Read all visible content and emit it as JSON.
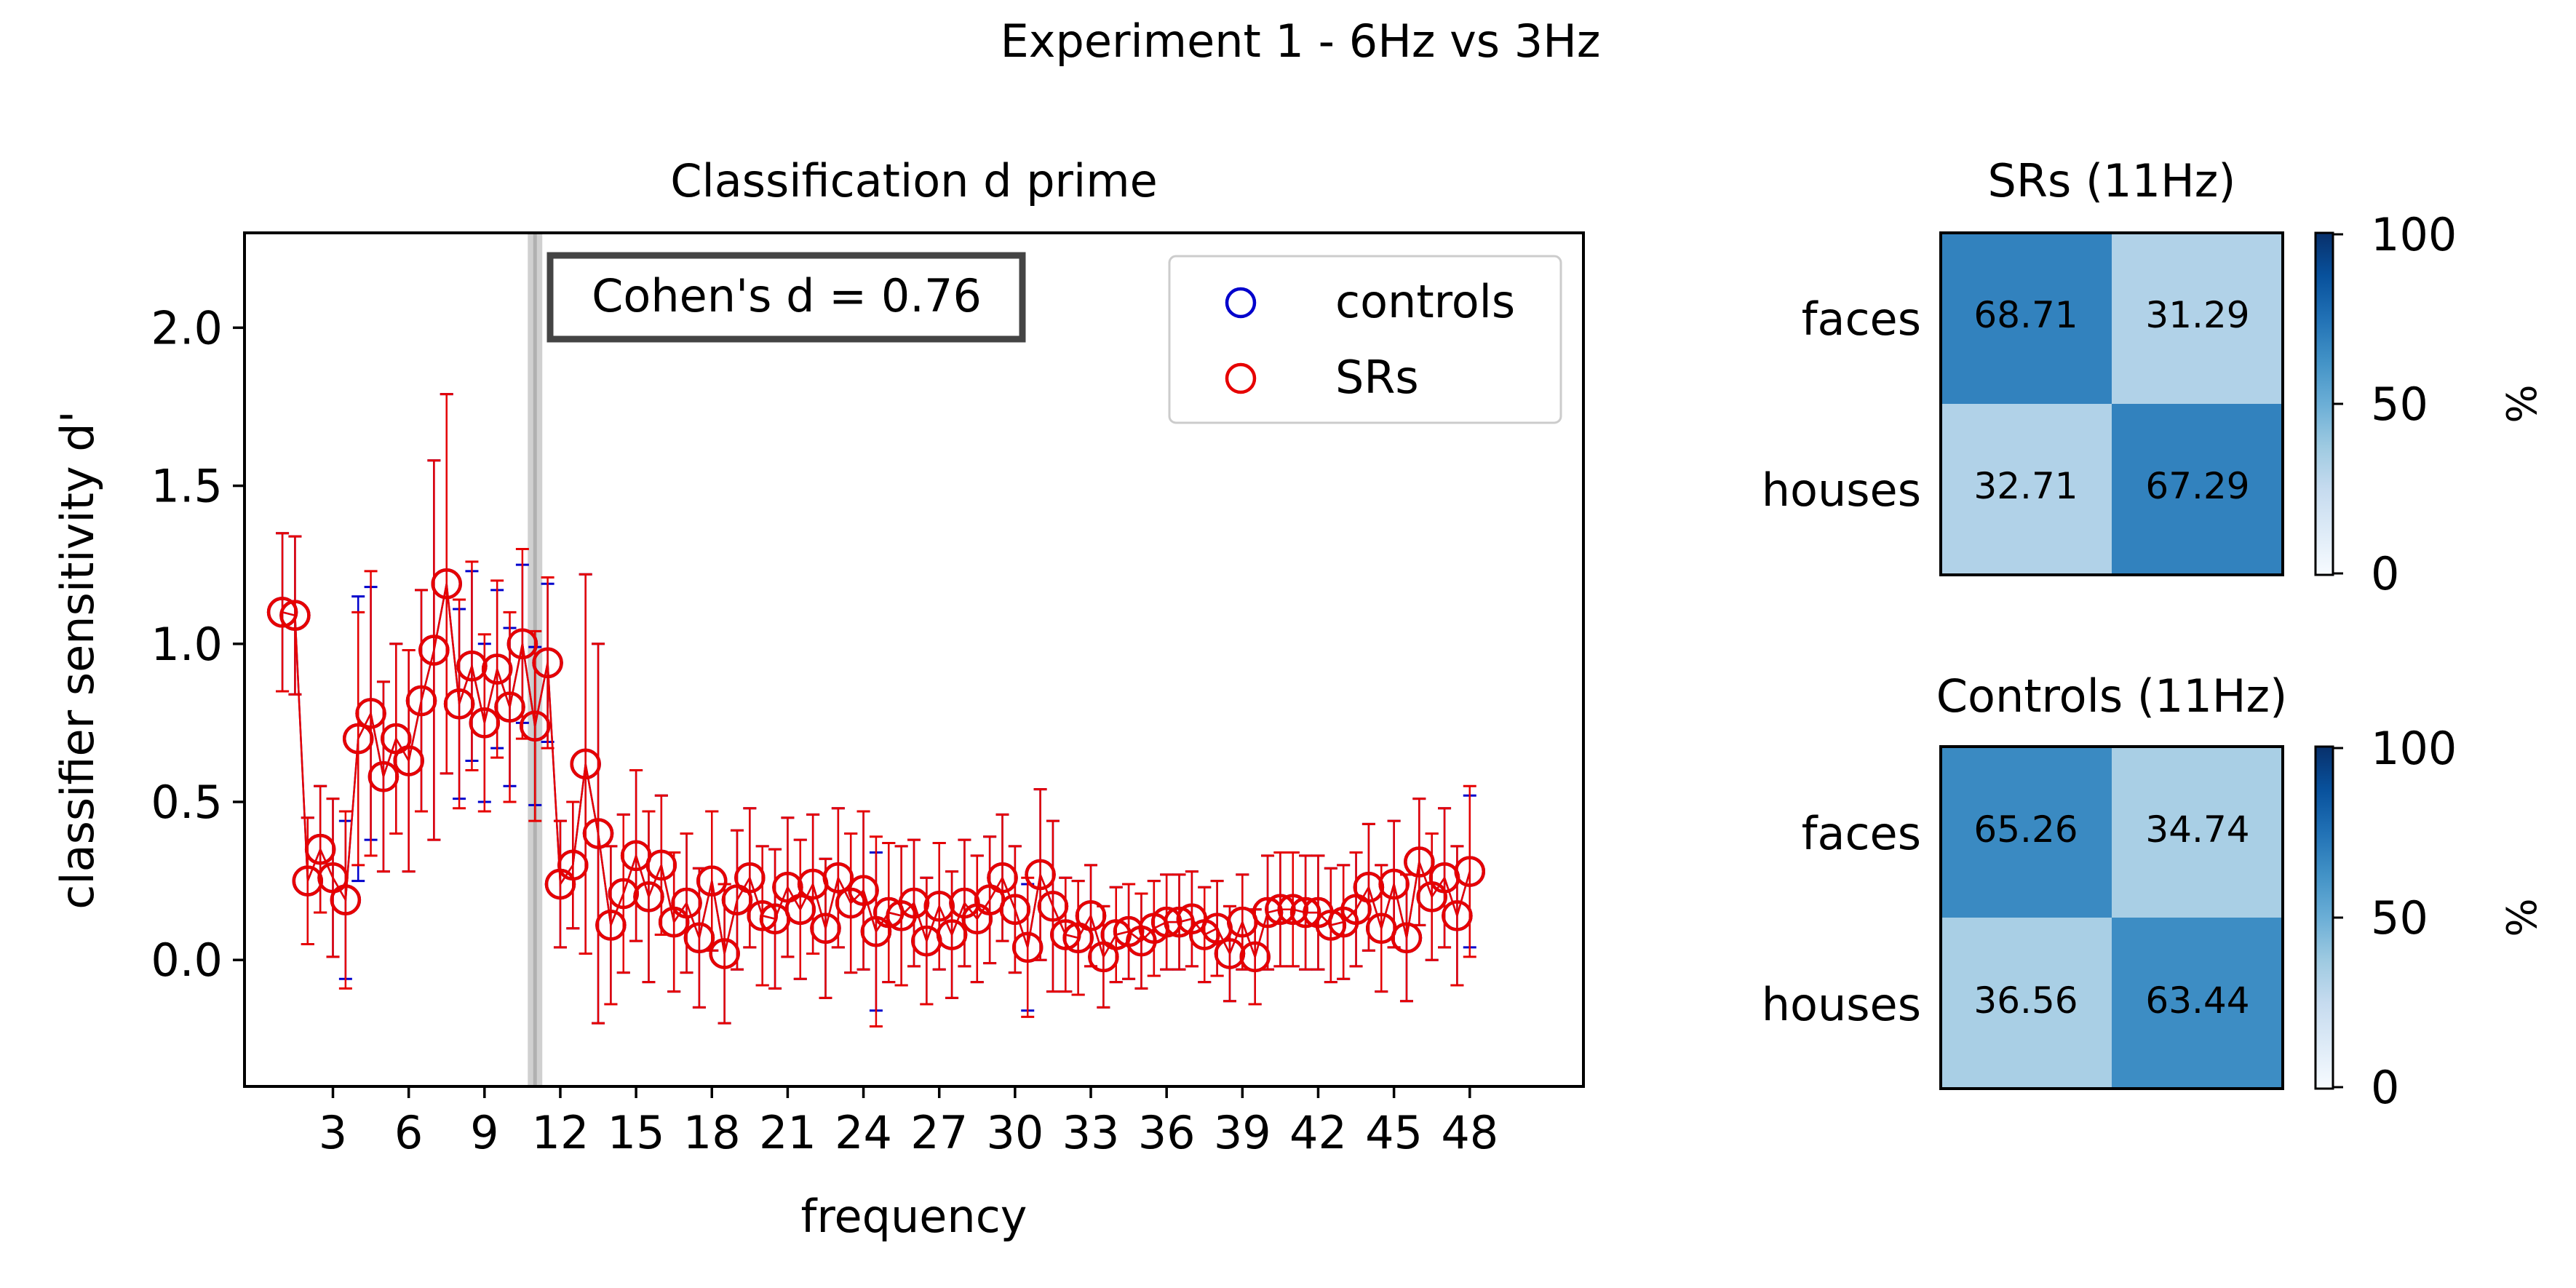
{
  "figure": {
    "suptitle": "Experiment 1 - 6Hz vs 3Hz"
  },
  "chart_data": [
    {
      "type": "line",
      "title": "Classification d prime",
      "xlabel": "frequency",
      "ylabel": "classifier sensitivity d'",
      "xlim": [
        -0.5,
        52.5
      ],
      "ylim": [
        -0.4,
        2.3
      ],
      "xticks": [
        3,
        6,
        9,
        12,
        15,
        18,
        21,
        24,
        27,
        30,
        33,
        36,
        39,
        42,
        45,
        48
      ],
      "yticks": [
        0.0,
        0.5,
        1.0,
        1.5,
        2.0
      ],
      "ytick_labels": [
        "0.0",
        "0.5",
        "1.0",
        "1.5",
        "2.0"
      ],
      "highlight_x": 11,
      "annotation": "Cohen's d = 0.76",
      "legend_position": "top-right",
      "x": [
        1.0,
        1.5,
        2,
        2.5,
        3,
        3.5,
        4,
        4.5,
        5,
        5.5,
        6,
        6.5,
        7,
        7.5,
        8,
        8.5,
        9,
        9.5,
        10,
        10.5,
        11,
        11.5,
        12,
        12.5,
        13,
        13.5,
        14,
        14.5,
        15,
        15.5,
        16,
        16.5,
        17,
        17.5,
        18,
        18.5,
        19,
        19.5,
        20,
        20.5,
        21,
        21.5,
        22,
        22.5,
        23,
        23.5,
        24,
        24.5,
        25,
        25.5,
        26,
        26.5,
        27,
        27.5,
        28,
        28.5,
        29,
        29.5,
        30,
        30.5,
        31,
        31.5,
        32,
        32.5,
        33,
        33.5,
        34,
        34.5,
        35,
        35.5,
        36,
        36.5,
        37,
        37.5,
        38,
        38.5,
        39,
        39.5,
        40,
        40.5,
        41,
        41.5,
        42,
        42.5,
        43,
        43.5,
        44,
        44.5,
        45,
        45.5,
        46,
        46.5,
        47,
        47.5,
        48
      ],
      "series": [
        {
          "name": "controls",
          "color": "#0000cc",
          "values": [
            1.1,
            1.09,
            0.25,
            0.35,
            0.26,
            0.19,
            0.7,
            0.78,
            0.58,
            0.7,
            0.63,
            0.82,
            0.98,
            1.19,
            0.81,
            0.93,
            0.75,
            0.92,
            0.8,
            1.0,
            0.74,
            0.94,
            0.24,
            0.3,
            0.62,
            0.4,
            0.11,
            0.21,
            0.33,
            0.2,
            0.3,
            0.12,
            0.18,
            0.07,
            0.25,
            0.02,
            0.19,
            0.26,
            0.14,
            0.13,
            0.23,
            0.16,
            0.24,
            0.1,
            0.26,
            0.18,
            0.22,
            0.09,
            0.15,
            0.14,
            0.18,
            0.06,
            0.17,
            0.08,
            0.18,
            0.13,
            0.19,
            0.26,
            0.16,
            0.04,
            0.27,
            0.17,
            0.08,
            0.07,
            0.14,
            0.01,
            0.08,
            0.09,
            0.06,
            0.1,
            0.12,
            0.12,
            0.13,
            0.08,
            0.1,
            0.02,
            0.12,
            0.01,
            0.15,
            0.16,
            0.16,
            0.15,
            0.15,
            0.11,
            0.12,
            0.16,
            0.23,
            0.1,
            0.24,
            0.07,
            0.31,
            0.2,
            0.26,
            0.14,
            0.28
          ],
          "err": [
            0.25,
            0.25,
            0.2,
            0.2,
            0.25,
            0.25,
            0.45,
            0.4,
            0.3,
            0.3,
            0.35,
            0.35,
            0.6,
            0.6,
            0.3,
            0.3,
            0.25,
            0.25,
            0.25,
            0.25,
            0.25,
            0.25,
            0.2,
            0.2,
            0.6,
            0.6,
            0.25,
            0.25,
            0.27,
            0.27,
            0.22,
            0.22,
            0.22,
            0.22,
            0.22,
            0.22,
            0.22,
            0.22,
            0.22,
            0.22,
            0.22,
            0.22,
            0.22,
            0.22,
            0.22,
            0.22,
            0.25,
            0.25,
            0.22,
            0.22,
            0.2,
            0.2,
            0.2,
            0.2,
            0.2,
            0.2,
            0.2,
            0.2,
            0.2,
            0.2,
            0.27,
            0.27,
            0.18,
            0.18,
            0.16,
            0.16,
            0.15,
            0.15,
            0.15,
            0.15,
            0.15,
            0.15,
            0.15,
            0.15,
            0.15,
            0.15,
            0.15,
            0.15,
            0.18,
            0.18,
            0.18,
            0.18,
            0.18,
            0.18,
            0.18,
            0.18,
            0.2,
            0.2,
            0.2,
            0.2,
            0.2,
            0.2,
            0.22,
            0.22,
            0.24
          ]
        },
        {
          "name": "SRs",
          "color": "#e60000",
          "values": [
            1.1,
            1.09,
            0.25,
            0.35,
            0.26,
            0.19,
            0.7,
            0.78,
            0.58,
            0.7,
            0.63,
            0.82,
            0.98,
            1.19,
            0.81,
            0.93,
            0.75,
            0.92,
            0.8,
            1.0,
            0.74,
            0.94,
            0.24,
            0.3,
            0.62,
            0.4,
            0.11,
            0.21,
            0.33,
            0.2,
            0.3,
            0.12,
            0.18,
            0.07,
            0.25,
            0.02,
            0.19,
            0.26,
            0.14,
            0.13,
            0.23,
            0.16,
            0.24,
            0.1,
            0.26,
            0.18,
            0.22,
            0.09,
            0.15,
            0.14,
            0.18,
            0.06,
            0.17,
            0.08,
            0.18,
            0.13,
            0.19,
            0.26,
            0.16,
            0.04,
            0.27,
            0.17,
            0.08,
            0.07,
            0.14,
            0.01,
            0.08,
            0.09,
            0.06,
            0.1,
            0.12,
            0.12,
            0.13,
            0.08,
            0.1,
            0.02,
            0.12,
            0.01,
            0.15,
            0.16,
            0.16,
            0.15,
            0.15,
            0.11,
            0.12,
            0.16,
            0.23,
            0.1,
            0.24,
            0.07,
            0.31,
            0.2,
            0.26,
            0.14,
            0.28
          ],
          "err": [
            0.25,
            0.25,
            0.2,
            0.2,
            0.25,
            0.28,
            0.4,
            0.45,
            0.3,
            0.3,
            0.35,
            0.35,
            0.6,
            0.6,
            0.33,
            0.33,
            0.28,
            0.28,
            0.3,
            0.3,
            0.3,
            0.27,
            0.2,
            0.2,
            0.6,
            0.6,
            0.25,
            0.25,
            0.27,
            0.27,
            0.22,
            0.22,
            0.22,
            0.22,
            0.22,
            0.22,
            0.22,
            0.22,
            0.22,
            0.22,
            0.22,
            0.22,
            0.22,
            0.22,
            0.22,
            0.22,
            0.25,
            0.3,
            0.22,
            0.22,
            0.2,
            0.2,
            0.2,
            0.2,
            0.2,
            0.2,
            0.2,
            0.2,
            0.2,
            0.22,
            0.27,
            0.27,
            0.18,
            0.18,
            0.16,
            0.16,
            0.15,
            0.15,
            0.15,
            0.15,
            0.15,
            0.15,
            0.15,
            0.15,
            0.15,
            0.15,
            0.15,
            0.15,
            0.18,
            0.18,
            0.18,
            0.18,
            0.18,
            0.18,
            0.18,
            0.18,
            0.2,
            0.2,
            0.2,
            0.2,
            0.2,
            0.2,
            0.22,
            0.22,
            0.27
          ]
        }
      ]
    },
    {
      "type": "heatmap",
      "title": "SRs (11Hz)",
      "rows": [
        "faces",
        "houses"
      ],
      "values": [
        [
          68.71,
          31.29
        ],
        [
          32.71,
          67.29
        ]
      ],
      "value_labels": [
        [
          "68.71",
          "31.29"
        ],
        [
          "32.71",
          "67.29"
        ]
      ],
      "colorbar": {
        "label": "%",
        "min": 0,
        "max": 100,
        "ticks": [
          "0",
          "50",
          "100"
        ]
      }
    },
    {
      "type": "heatmap",
      "title": "Controls (11Hz)",
      "rows": [
        "faces",
        "houses"
      ],
      "values": [
        [
          65.26,
          34.74
        ],
        [
          36.56,
          63.44
        ]
      ],
      "value_labels": [
        [
          "65.26",
          "34.74"
        ],
        [
          "36.56",
          "63.44"
        ]
      ],
      "colorbar": {
        "label": "%",
        "min": 0,
        "max": 100,
        "ticks": [
          "0",
          "50",
          "100"
        ]
      }
    }
  ]
}
